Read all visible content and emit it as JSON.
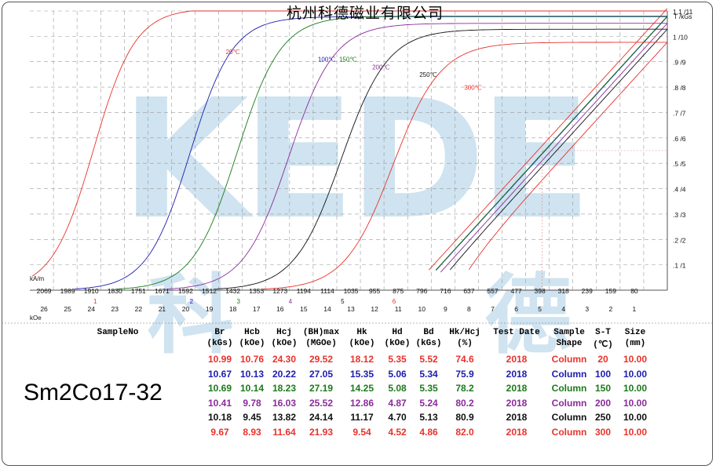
{
  "header": {
    "company": "杭州科德磁业有限公司"
  },
  "sample_no": "Sm2Co17-32",
  "watermark": {
    "text": "KEDE",
    "chars": [
      "科",
      "德"
    ],
    "color": "#cfe3f0"
  },
  "axes": {
    "hunit_si": "kA/m",
    "hunit_cgs": "kOe",
    "bunit": "T /kGs",
    "koe_ticks": [
      26,
      25,
      24,
      23,
      22,
      21,
      20,
      19,
      18,
      17,
      16,
      15,
      14,
      13,
      12,
      11,
      10,
      9,
      8,
      7,
      6,
      5,
      4,
      3,
      2,
      1
    ],
    "kam_ticks": [
      "2069",
      "1989",
      "1910",
      "1830",
      "1751",
      "1671",
      "1592",
      "1512",
      "1432",
      "1353",
      "1273",
      "1194",
      "1114",
      "1035",
      "955",
      "875",
      "796",
      "716",
      "637",
      "557",
      "477",
      "398",
      "318",
      "239",
      "159",
      "80"
    ],
    "b_ticks": [
      ".1 /1",
      ".2 /2",
      ".3 /3",
      ".4 /4",
      ".5 /5",
      ".6 /6",
      ".7 /7",
      ".8 /8",
      ".9 /9",
      "1 /10",
      "1.1 /11"
    ],
    "marker_labels": [
      "1",
      "2",
      "3",
      "4",
      "5",
      "6"
    ]
  },
  "chart_data": {
    "type": "line",
    "title": "",
    "xlabel": "kOe",
    "ylabel": "T /kGs",
    "xlim": [
      -27,
      0
    ],
    "ylim": [
      0,
      11
    ],
    "grid": true,
    "series": [
      {
        "name": "20℃",
        "color": "#e8322b",
        "Br": 10.99,
        "Hcj": 24.3,
        "Hcb": 10.76
      },
      {
        "name": "100℃",
        "color": "#1c1cb0",
        "Br": 10.67,
        "Hcj": 20.22,
        "Hcb": 10.13
      },
      {
        "name": "150℃",
        "color": "#1a7a1a",
        "Br": 10.69,
        "Hcj": 18.23,
        "Hcb": 10.14
      },
      {
        "name": "200℃",
        "color": "#8a2b9a",
        "Br": 10.41,
        "Hcj": 16.03,
        "Hcb": 9.78
      },
      {
        "name": "250℃",
        "color": "#111111",
        "Br": 10.18,
        "Hcj": 13.82,
        "Hcb": 9.45
      },
      {
        "name": "300℃",
        "color": "#e8322b",
        "Br": 9.67,
        "Hcj": 11.64,
        "Hcb": 8.93
      }
    ]
  },
  "table": {
    "label": "SampleNo",
    "headers": [
      [
        "Br",
        "(kGs)"
      ],
      [
        "Hcb",
        "(kOe)"
      ],
      [
        "Hcj",
        "(kOe)"
      ],
      [
        "(BH)max",
        "(MGOe)"
      ],
      [
        "Hk",
        "(kOe)"
      ],
      [
        "Hd",
        "(kOe)"
      ],
      [
        "Bd",
        "(kGs)"
      ],
      [
        "Hk/Hcj",
        "(%)"
      ],
      [
        "Test Date",
        ""
      ],
      [
        "Sample",
        "Shape"
      ],
      [
        "S-T",
        "(℃)"
      ],
      [
        "Size",
        "(mm)"
      ]
    ],
    "rows": [
      {
        "color": "#e8322b",
        "cells": [
          "10.99",
          "10.76",
          "24.30",
          "29.52",
          "18.12",
          "5.35",
          "5.52",
          "74.6",
          "2018",
          "Column",
          "20",
          "10.00"
        ]
      },
      {
        "color": "#1c1cb0",
        "cells": [
          "10.67",
          "10.13",
          "20.22",
          "27.05",
          "15.35",
          "5.06",
          "5.34",
          "75.9",
          "2018",
          "Column",
          "100",
          "10.00"
        ]
      },
      {
        "color": "#1a7a1a",
        "cells": [
          "10.69",
          "10.14",
          "18.23",
          "27.19",
          "14.25",
          "5.08",
          "5.35",
          "78.2",
          "2018",
          "Column",
          "150",
          "10.00"
        ]
      },
      {
        "color": "#8a2b9a",
        "cells": [
          "10.41",
          "9.78",
          "16.03",
          "25.52",
          "12.86",
          "4.87",
          "5.24",
          "80.2",
          "2018",
          "Column",
          "200",
          "10.00"
        ]
      },
      {
        "color": "#111111",
        "cells": [
          "10.18",
          "9.45",
          "13.82",
          "24.14",
          "11.17",
          "4.70",
          "5.13",
          "80.9",
          "2018",
          "Column",
          "250",
          "10.00"
        ]
      },
      {
        "color": "#e8322b",
        "cells": [
          "9.67",
          "8.93",
          "11.64",
          "21.93",
          "9.54",
          "4.52",
          "4.86",
          "82.0",
          "2018",
          "Column",
          "300",
          "10.00"
        ]
      }
    ]
  }
}
